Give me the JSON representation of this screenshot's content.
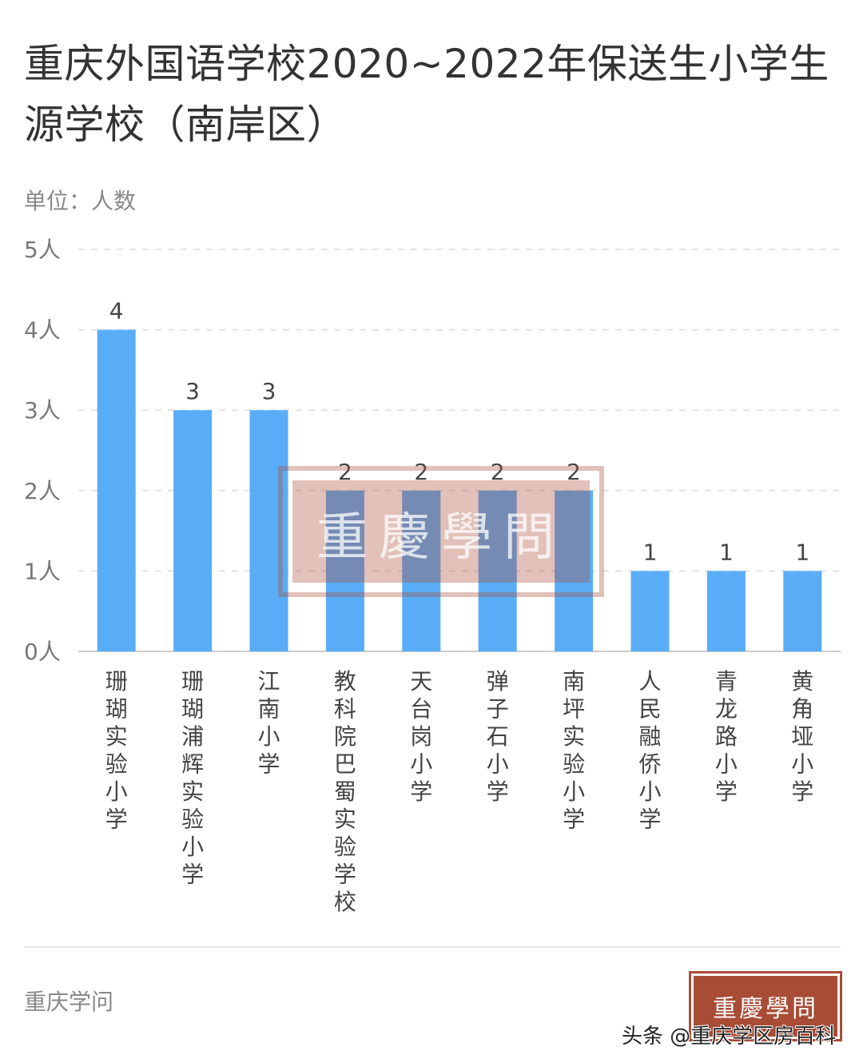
{
  "chart_data": {
    "type": "bar",
    "title": "重庆外国语学校2020~2022年保送生小学生源学校（南岸区）",
    "unit_label": "单位：人数",
    "categories": [
      "珊瑚实验小学",
      "珊瑚浦辉实验小学",
      "江南小学",
      "教科院巴蜀实验学校",
      "天台岗小学",
      "弹子石小学",
      "南坪实验小学",
      "人民融侨小学",
      "青龙路小学",
      "黄角垭小学"
    ],
    "values": [
      4,
      3,
      3,
      2,
      2,
      2,
      2,
      1,
      1,
      1
    ],
    "ylim": [
      0,
      5
    ],
    "yticks": [
      "0人",
      "1人",
      "2人",
      "3人",
      "4人",
      "5人"
    ],
    "grid": true,
    "bar_color": "#59adf6",
    "xlabel": "",
    "ylabel": ""
  },
  "footer": {
    "source": "重庆学问",
    "logo_text": "重慶學問",
    "credit": "头条 @重庆学区房百科"
  },
  "watermark": {
    "text": "重慶學問",
    "color": "#a84c36"
  }
}
